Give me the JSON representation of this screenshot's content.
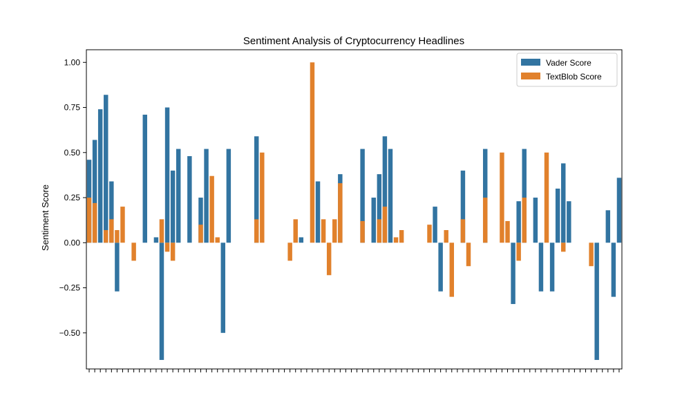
{
  "chart_data": {
    "type": "bar",
    "title": "Sentiment Analysis of Cryptocurrency Headlines",
    "xlabel": "",
    "ylabel": "Sentiment Score",
    "ylim": [
      -0.7,
      1.07
    ],
    "yticks": [
      1.0,
      0.75,
      0.5,
      0.25,
      0.0,
      -0.25,
      -0.5
    ],
    "ytick_labels": [
      "1.00",
      "0.75",
      "0.50",
      "0.25",
      "0.00",
      "−0.25",
      "−0.50"
    ],
    "stacked": true,
    "grid": false,
    "legend_position": "top-right",
    "categories_count": 96,
    "series": [
      {
        "name": "Vader Score",
        "color": "#3274a1",
        "values": [
          0.46,
          0.57,
          0.74,
          0.82,
          0.34,
          -0.27,
          0.0,
          0.0,
          0.0,
          0.0,
          0.71,
          0.0,
          0.03,
          -0.65,
          0.75,
          0.4,
          0.52,
          0.0,
          0.48,
          0.0,
          0.25,
          0.52,
          0.0,
          0.0,
          -0.5,
          0.52,
          0.0,
          0.0,
          0.0,
          0.0,
          0.59,
          0.0,
          0.0,
          0.0,
          0.0,
          0.0,
          0.0,
          0.0,
          0.03,
          0.0,
          0.0,
          0.34,
          0.0,
          0.0,
          0.0,
          0.38,
          0.0,
          0.0,
          0.0,
          0.52,
          0.0,
          0.25,
          0.38,
          0.59,
          0.52,
          0.0,
          0.0,
          0.0,
          0.0,
          0.0,
          0.0,
          0.0,
          0.2,
          -0.27,
          0.0,
          0.0,
          0.0,
          0.4,
          0.0,
          0.0,
          0.0,
          0.52,
          0.0,
          0.0,
          0.0,
          0.0,
          -0.34,
          0.23,
          0.52,
          0.0,
          0.25,
          -0.27,
          0.0,
          -0.27,
          0.3,
          0.44,
          0.23,
          0.0,
          0.0,
          0.0,
          0.0,
          -0.65,
          0.0,
          0.18,
          -0.3,
          0.36
        ]
      },
      {
        "name": "TextBlob Score",
        "color": "#e1812c",
        "values": [
          0.25,
          0.22,
          0.0,
          0.07,
          0.13,
          0.07,
          0.2,
          0.0,
          -0.1,
          0.0,
          0.0,
          0.0,
          0.0,
          0.13,
          -0.05,
          -0.1,
          0.0,
          0.0,
          0.0,
          0.0,
          0.1,
          0.0,
          0.37,
          0.03,
          0.0,
          0.0,
          0.0,
          0.0,
          0.0,
          0.0,
          0.13,
          0.5,
          0.0,
          0.0,
          0.0,
          0.0,
          -0.1,
          0.13,
          0.0,
          0.0,
          1.0,
          0.0,
          0.13,
          -0.18,
          0.13,
          0.33,
          0.0,
          0.0,
          0.0,
          0.12,
          0.0,
          0.0,
          0.13,
          0.2,
          0.0,
          0.03,
          0.07,
          0.0,
          0.0,
          0.0,
          0.0,
          0.1,
          0.0,
          0.0,
          0.07,
          -0.3,
          0.0,
          0.13,
          -0.13,
          0.0,
          0.0,
          0.25,
          0.0,
          0.0,
          0.5,
          0.12,
          0.0,
          -0.1,
          0.25,
          0.0,
          0.0,
          0.0,
          0.5,
          0.0,
          0.0,
          -0.05,
          0.0,
          0.0,
          0.0,
          0.0,
          -0.13,
          0.0,
          0.0,
          0.0,
          0.0,
          0.0
        ]
      }
    ]
  }
}
